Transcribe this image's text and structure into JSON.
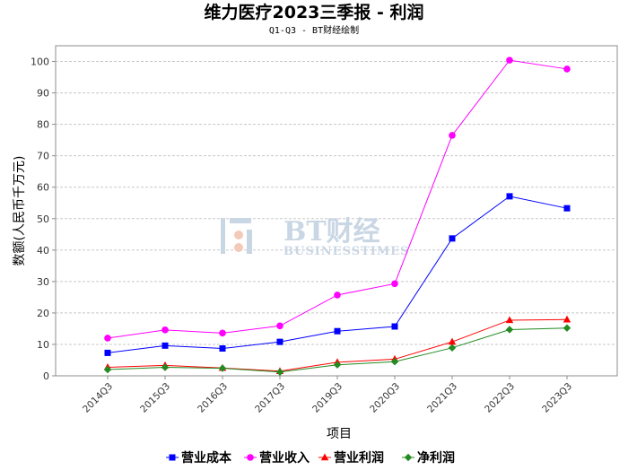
{
  "chart_data": {
    "type": "line",
    "title": "维力医疗2023三季报 - 利润",
    "subtitle": "Q1-Q3 - BT财经绘制",
    "xlabel": "项目",
    "ylabel": "数额(人民币千万元)",
    "ylim": [
      0,
      105
    ],
    "yticks": [
      0,
      10,
      20,
      30,
      40,
      50,
      60,
      70,
      80,
      90,
      100
    ],
    "grid": true,
    "legend_position": "bottom",
    "categories": [
      "2014Q3",
      "2015Q3",
      "2016Q3",
      "2017Q3",
      "2019Q3",
      "2020Q3",
      "2021Q3",
      "2022Q3",
      "2023Q3"
    ],
    "series": [
      {
        "name": "营业成本",
        "color": "#0000ff",
        "marker": "square",
        "values": [
          7.3,
          9.6,
          8.7,
          10.8,
          14.2,
          15.7,
          43.7,
          57.1,
          53.3
        ]
      },
      {
        "name": "营业收入",
        "color": "#ff00ff",
        "marker": "circle",
        "values": [
          12.0,
          14.6,
          13.6,
          15.9,
          25.7,
          29.3,
          76.5,
          100.4,
          97.6
        ]
      },
      {
        "name": "营业利润",
        "color": "#ff0000",
        "marker": "triangle",
        "values": [
          2.7,
          3.3,
          2.5,
          1.5,
          4.3,
          5.3,
          10.8,
          17.7,
          17.9
        ]
      },
      {
        "name": "净利润",
        "color": "#228b22",
        "marker": "diamond",
        "values": [
          2.0,
          2.7,
          2.4,
          1.2,
          3.5,
          4.5,
          8.9,
          14.7,
          15.2
        ]
      }
    ]
  },
  "watermark": {
    "brand": "BT财经",
    "tagline": "BUSINESSTIMES"
  }
}
